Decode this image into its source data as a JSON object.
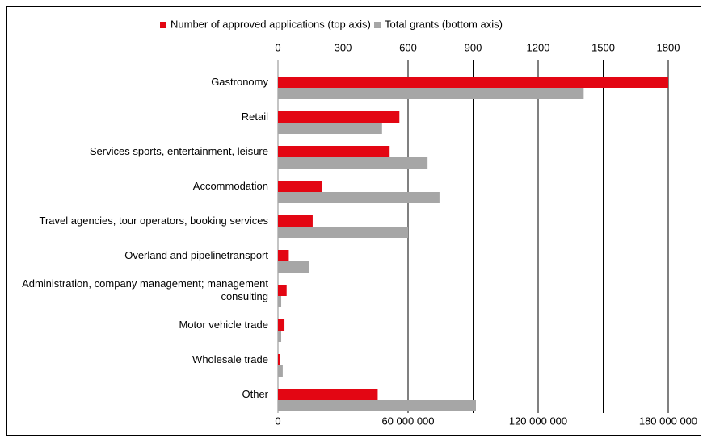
{
  "chart_data": {
    "type": "bar",
    "orientation": "horizontal",
    "categories": [
      "Gastronomy",
      "Retail",
      "Services sports, entertainment, leisure",
      "Accommodation",
      "Travel agencies, tour operators, booking services",
      "Overland and pipelinetransport",
      "Administration, company management; management consulting",
      "Motor vehicle trade",
      "Wholesale trade",
      "Other"
    ],
    "series": [
      {
        "name": "Number of approved applications (top axis)",
        "color": "#e30613",
        "axis": "x2",
        "values": [
          1800,
          560,
          515,
          205,
          160,
          50,
          40,
          30,
          10,
          460
        ]
      },
      {
        "name": "Total grants (bottom axis)",
        "color": "#a6a6a6",
        "axis": "x",
        "values": [
          141000000,
          48000000,
          69000000,
          74500000,
          60000000,
          14500000,
          1500000,
          1500000,
          2200000,
          91300000
        ]
      }
    ],
    "x2lim": [
      0,
      1800
    ],
    "x2ticks": [
      0,
      300,
      600,
      900,
      1200,
      1500,
      1800
    ],
    "xlim": [
      0,
      180000000
    ],
    "xticks": [
      0,
      {
        "value": 60000000,
        "label": "60 000 000"
      },
      {
        "value": 120000000,
        "label": "120 000 000"
      },
      {
        "value": 180000000,
        "label": "180 000 000"
      }
    ],
    "grid": true,
    "legend": "top"
  }
}
